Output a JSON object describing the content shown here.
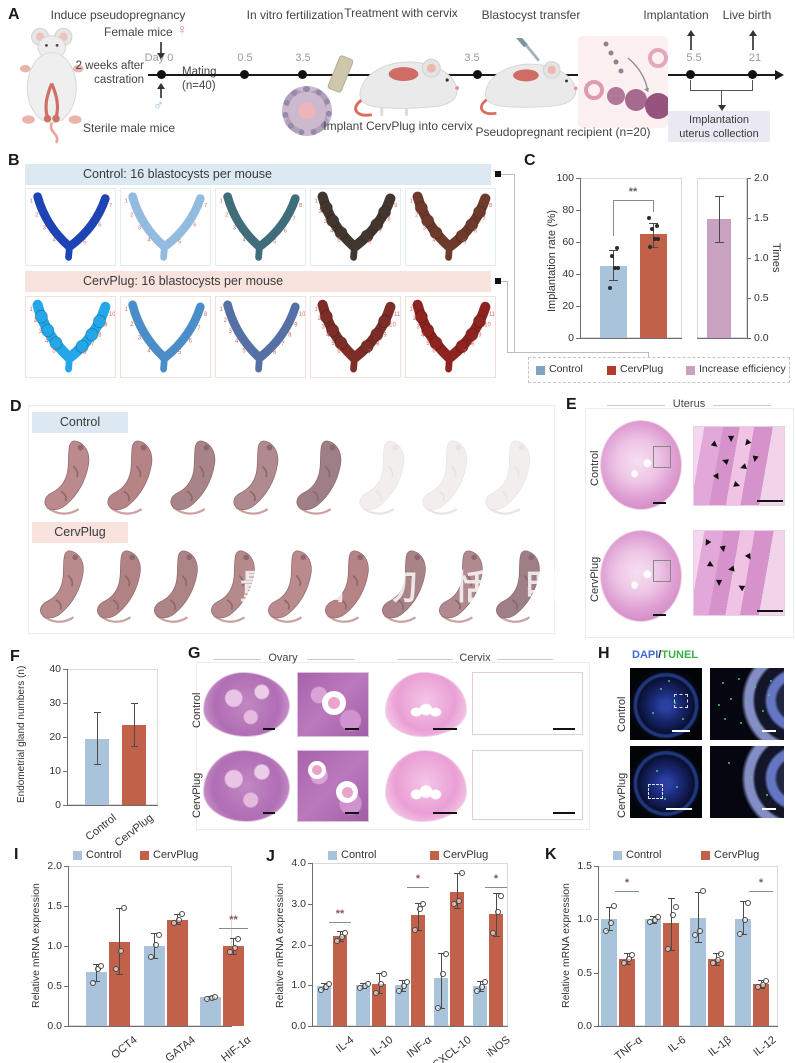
{
  "colors": {
    "control_bar": "#a9c4da",
    "cervplug_bar": "#c2614a",
    "increase_bar": "#c9a2c2",
    "legend_control": "#7fa3c3",
    "legend_cervplug": "#b23b2b",
    "legend_increase": "#c9a0c4",
    "header_blue": "#dce9f2",
    "header_pink": "#f7e2de",
    "dapi_blue": "#3f6ad8",
    "tunel_green": "#3cb043",
    "site_number": "#d4695e"
  },
  "panelA": {
    "label": "A",
    "steps": [
      "Induce pseudopregnancy",
      "In vitro fertilization",
      "Treatment with cervix",
      "Blastocyst transfer"
    ],
    "implantation": "Implantation",
    "live_birth": "Live birth",
    "female_mice": "Female mice",
    "female_symbol": "♀",
    "castration_1": "2 weeks after",
    "castration_2": "castration",
    "male_symbol": "♂",
    "sterile_male": "Sterile male mice",
    "day0": "Day 0",
    "mating": "Mating",
    "mating_n": "(n=40)",
    "t05": "0.5",
    "t35a": "3.5",
    "t35b": "3.5",
    "t55": "5.5",
    "t21": "21",
    "implant_caption": "Implant CervPlug into cervix",
    "recipient": "Pseudopregnant recipient (n=20)",
    "collection_1": "Implantation",
    "collection_2": "uterus collection"
  },
  "panelB": {
    "label": "B",
    "rows": [
      {
        "header": "Control: 16 blastocysts per mouse",
        "accent": "#dce9f2",
        "border": "#e3ecf2",
        "tiles": [
          {
            "color": "#1d43b5",
            "sites": 7,
            "bumpy": false
          },
          {
            "color": "#93bbdf",
            "sites": 7,
            "bumpy": false
          },
          {
            "color": "#3f6d79",
            "sites": 8,
            "bumpy": false
          },
          {
            "color": "#41372e",
            "sites": 9,
            "bumpy": true
          },
          {
            "color": "#6e3a2c",
            "sites": 8,
            "bumpy": true
          }
        ]
      },
      {
        "header": "CervPlug: 16 blastocysts per mouse",
        "accent": "#f7e2de",
        "border": "#f5e0dc",
        "tiles": [
          {
            "color": "#23a7e8",
            "sites": 10,
            "bumpy": true
          },
          {
            "color": "#4a8ec9",
            "sites": 8,
            "bumpy": false
          },
          {
            "color": "#5570a4",
            "sites": 10,
            "bumpy": false
          },
          {
            "color": "#7c2d28",
            "sites": 11,
            "bumpy": true
          },
          {
            "color": "#8e2320",
            "sites": 11,
            "bumpy": true
          }
        ]
      }
    ]
  },
  "panelC": {
    "label": "C"
  },
  "panelD": {
    "label": "D",
    "groups": [
      {
        "name": "Control",
        "accent": "#dce9f2",
        "pups": [
          "solid",
          "solid",
          "solid",
          "solid",
          "solid",
          "pale",
          "pale",
          "pale"
        ]
      },
      {
        "name": "CervPlug",
        "accent": "#f7e2de",
        "pups": [
          "solid",
          "solid",
          "solid",
          "solid",
          "solid",
          "solid",
          "solid",
          "solid",
          "solid"
        ]
      }
    ],
    "watermark": "量 旧 切 恬 明"
  },
  "panelE": {
    "label": "E",
    "title": "Uterus",
    "rows": [
      "Control",
      "CervPlug"
    ]
  },
  "panelF": {
    "label": "F"
  },
  "panelG": {
    "label": "G",
    "columns": [
      "Ovary",
      "Cervix"
    ],
    "rows": [
      "Control",
      "CervPlug"
    ]
  },
  "panelH": {
    "label": "H",
    "stain_blue": "DAPI",
    "separator": "/",
    "stain_green": "TUNEL",
    "rows": [
      "Control",
      "CervPlug"
    ]
  },
  "panelI": {
    "label": "I"
  },
  "panelJ": {
    "label": "J"
  },
  "panelK": {
    "label": "K"
  },
  "chart_data": [
    {
      "panel": "C",
      "type": "bar",
      "left_axis": {
        "label": "Implantation rate (%)",
        "ticks": [
          "0",
          "20",
          "40",
          "60",
          "80",
          "100"
        ],
        "ylim": [
          0,
          100
        ]
      },
      "right_axis": {
        "label": "Times",
        "ticks": [
          "0.0",
          "0.5",
          "1.0",
          "1.5",
          "2.0"
        ],
        "ylim": [
          0,
          2
        ]
      },
      "groups": [
        {
          "name": "Control",
          "axis": "left",
          "value": 45,
          "err": [
            36,
            55
          ],
          "dots": [
            31,
            44,
            44,
            51,
            56
          ]
        },
        {
          "name": "CervPlug",
          "axis": "left",
          "value": 65,
          "err": [
            57,
            72
          ],
          "dots": [
            57,
            62,
            62,
            68,
            70,
            75
          ]
        },
        {
          "name": "Increase efficiency",
          "axis": "right",
          "value": 1.49,
          "err": [
            1.2,
            1.78
          ],
          "dots": []
        }
      ],
      "significance": {
        "label": "**",
        "between": [
          "Control",
          "CervPlug"
        ]
      },
      "legend": [
        "Control",
        "CervPlug",
        "Increase efficiency"
      ]
    },
    {
      "panel": "F",
      "type": "bar",
      "ylabel": "Endometrial gland numbers (n)",
      "ylim": [
        0,
        40
      ],
      "ticks": [
        "0",
        "10",
        "20",
        "30",
        "40"
      ],
      "categories": [
        "Control",
        "CervPlug"
      ],
      "values": [
        19.5,
        23.5
      ],
      "errors": [
        [
          12,
          27.5
        ],
        [
          17.5,
          30
        ]
      ]
    },
    {
      "panel": "I",
      "type": "grouped-bar",
      "ylabel": "Relative mRNA expression",
      "ylim": [
        0,
        2
      ],
      "ticks": [
        "0.0",
        "0.5",
        "1.0",
        "1.5",
        "2.0"
      ],
      "categories": [
        "OCT4",
        "GATA4",
        "HIF-1α"
      ],
      "series": [
        {
          "name": "Control",
          "values": [
            0.67,
            1.0,
            0.36
          ],
          "errors": [
            [
              0.56,
              0.78
            ],
            [
              0.85,
              1.16
            ],
            [
              0.34,
              0.38
            ]
          ],
          "dots": [
            [
              0.55,
              0.72,
              0.76
            ],
            [
              0.87,
              1.02,
              1.15
            ],
            [
              0.35,
              0.36,
              0.37
            ]
          ]
        },
        {
          "name": "CervPlug",
          "values": [
            1.05,
            1.33,
            1.0
          ],
          "errors": [
            [
              0.65,
              1.48
            ],
            [
              1.27,
              1.4
            ],
            [
              0.9,
              1.1
            ]
          ],
          "dots": [
            [
              0.72,
              0.95,
              1.48
            ],
            [
              1.29,
              1.33,
              1.41
            ],
            [
              0.93,
              0.98,
              1.09
            ]
          ]
        }
      ],
      "significance": [
        {
          "category": "HIF-1α",
          "label": "**"
        }
      ]
    },
    {
      "panel": "J",
      "type": "grouped-bar",
      "ylabel": "Relative mRNA expression",
      "ylim": [
        0,
        4
      ],
      "ticks": [
        "0.0",
        "1.0",
        "2.0",
        "3.0",
        "4.0"
      ],
      "categories": [
        "IL-4",
        "IL-10",
        "INF-α",
        "CXCL-10",
        "iNOS"
      ],
      "series": [
        {
          "name": "Control",
          "values": [
            0.97,
            1.0,
            1.0,
            1.17,
            0.97
          ],
          "errors": [
            [
              0.9,
              1.05
            ],
            [
              0.94,
              1.06
            ],
            [
              0.85,
              1.12
            ],
            [
              0.45,
              1.8
            ],
            [
              0.85,
              1.1
            ]
          ],
          "dots": [
            [
              0.9,
              0.97,
              1.05
            ],
            [
              0.95,
              1.0,
              1.05
            ],
            [
              0.87,
              1.0,
              1.1
            ],
            [
              0.46,
              1.3,
              1.78
            ],
            [
              0.87,
              0.97,
              1.08
            ]
          ]
        },
        {
          "name": "CervPlug",
          "values": [
            2.2,
            1.03,
            2.72,
            3.3,
            2.75
          ],
          "errors": [
            [
              2.08,
              2.33
            ],
            [
              0.8,
              1.3
            ],
            [
              2.35,
              3.02
            ],
            [
              2.9,
              3.75
            ],
            [
              2.2,
              3.27
            ]
          ],
          "dots": [
            [
              2.1,
              2.2,
              2.29
            ],
            [
              0.82,
              1.05,
              1.28
            ],
            [
              2.37,
              2.88,
              3.0
            ],
            [
              3.0,
              3.08,
              3.76
            ],
            [
              2.3,
              2.8,
              3.2
            ]
          ]
        }
      ],
      "significance": [
        {
          "category": "IL-4",
          "label": "**"
        },
        {
          "category": "INF-α",
          "label": "*"
        },
        {
          "category": "iNOS",
          "label": "*"
        }
      ]
    },
    {
      "panel": "K",
      "type": "grouped-bar",
      "ylabel": "Relative mRNA expression",
      "ylim": [
        0,
        1.5
      ],
      "ticks": [
        "0.0",
        "0.5",
        "1.0",
        "1.5"
      ],
      "categories": [
        "TNF-α",
        "IL-6",
        "IL-1β",
        "IL-12"
      ],
      "series": [
        {
          "name": "Control",
          "values": [
            1.0,
            1.0,
            1.01,
            1.0
          ],
          "errors": [
            [
              0.9,
              1.12
            ],
            [
              0.97,
              1.03
            ],
            [
              0.79,
              1.26
            ],
            [
              0.86,
              1.17
            ]
          ],
          "dots": [
            [
              0.9,
              0.97,
              1.13
            ],
            [
              0.98,
              1.0,
              1.03
            ],
            [
              0.86,
              0.9,
              1.27
            ],
            [
              0.87,
              1.0,
              1.16
            ]
          ]
        },
        {
          "name": "CervPlug",
          "values": [
            0.63,
            0.97,
            0.63,
            0.39
          ],
          "errors": [
            [
              0.58,
              0.68
            ],
            [
              0.71,
              1.2
            ],
            [
              0.57,
              0.68
            ],
            [
              0.36,
              0.43
            ]
          ],
          "dots": [
            [
              0.6,
              0.63,
              0.67
            ],
            [
              0.73,
              1.05,
              1.12
            ],
            [
              0.6,
              0.62,
              0.68
            ],
            [
              0.37,
              0.39,
              0.43
            ]
          ]
        }
      ],
      "significance": [
        {
          "category": "TNF-α",
          "label": "*"
        },
        {
          "category": "IL-12",
          "label": "*"
        }
      ]
    }
  ]
}
